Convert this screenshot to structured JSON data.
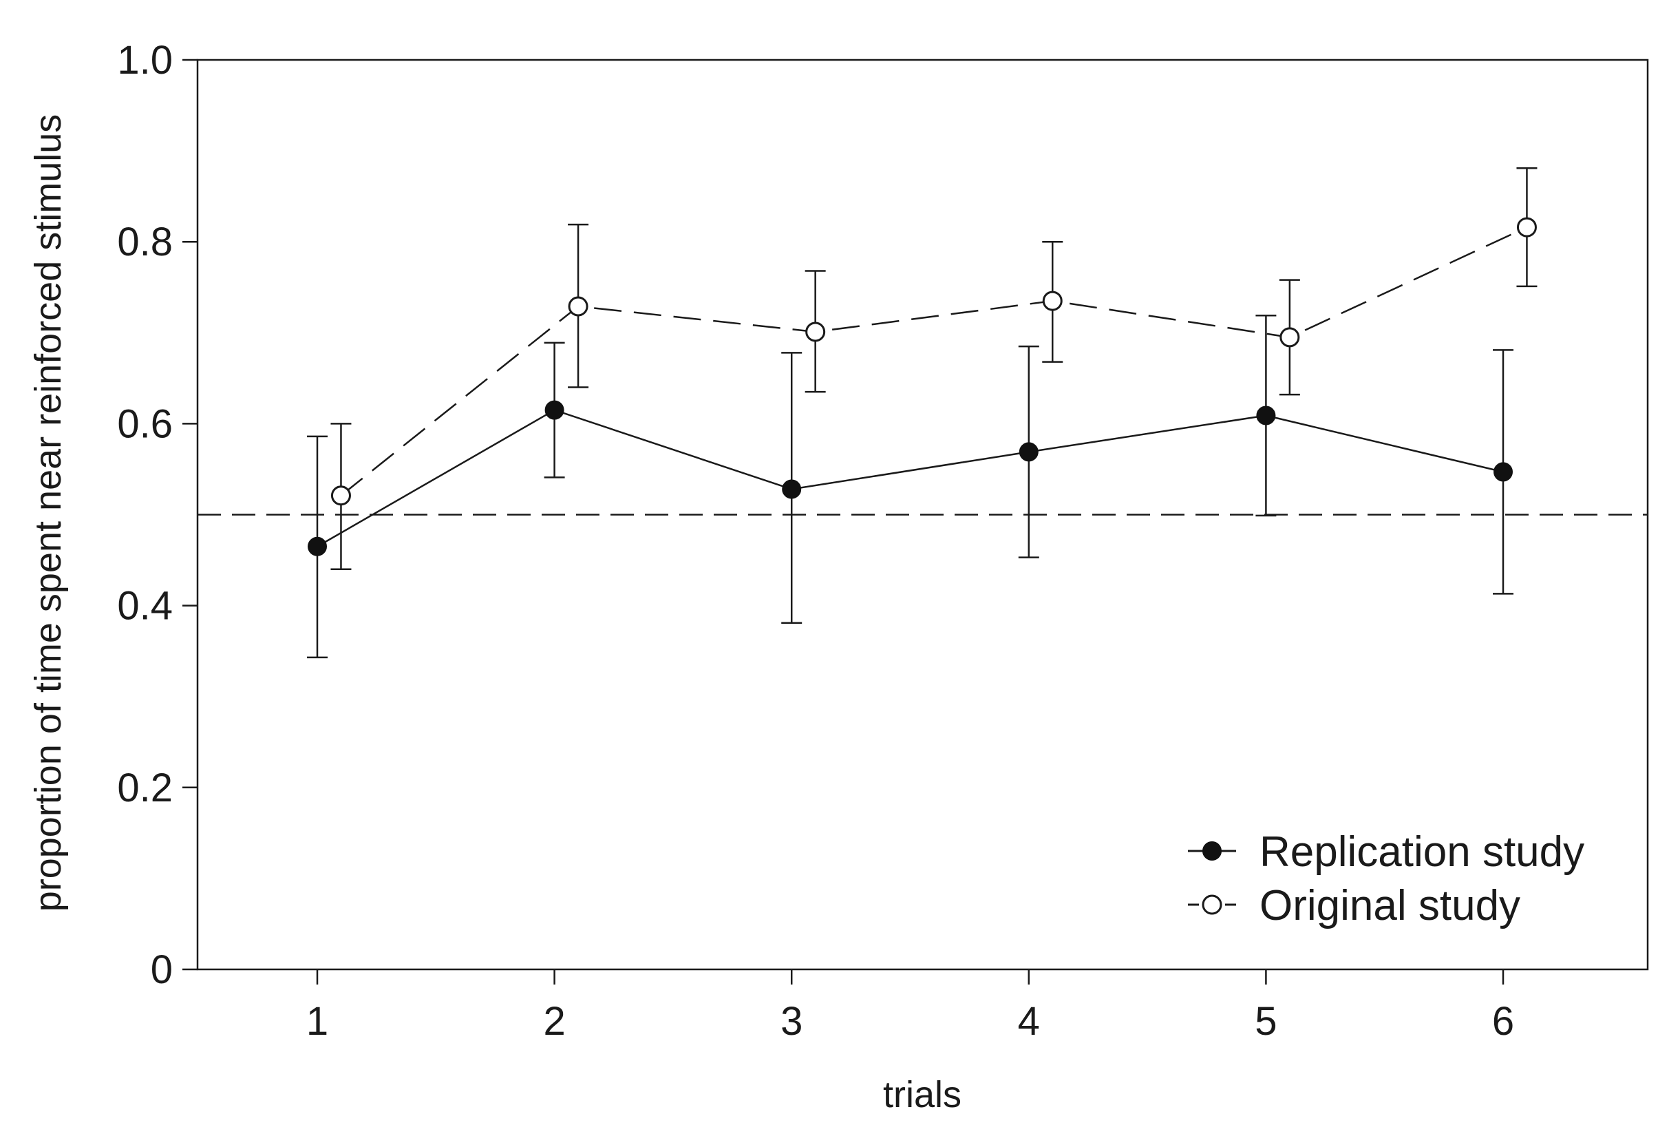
{
  "chart_data": {
    "type": "line",
    "title": "",
    "xlabel": "trials",
    "ylabel": "proportion of time spent near reinforced stimulus",
    "xlim": [
      0.5,
      6.6
    ],
    "ylim": [
      0,
      1.0
    ],
    "x_ticks": [
      1,
      2,
      3,
      4,
      5,
      6
    ],
    "x_tick_labels": [
      "1",
      "2",
      "3",
      "4",
      "5",
      "6"
    ],
    "y_ticks": [
      0,
      0.2,
      0.4,
      0.6,
      0.8,
      1.0
    ],
    "y_tick_labels": [
      "0",
      "0.2",
      "0.4",
      "0.6",
      "0.8",
      "1.0"
    ],
    "grid": false,
    "reference_line": {
      "y": 0.5,
      "style": "dashed"
    },
    "legend_position": "bottom-right",
    "series": [
      {
        "name": "Replication study",
        "marker": "filled-circle",
        "line_style": "solid",
        "x": [
          1,
          2,
          3,
          4,
          5,
          6
        ],
        "values": [
          0.465,
          0.615,
          0.528,
          0.569,
          0.609,
          0.547
        ],
        "err_low": [
          0.343,
          0.541,
          0.381,
          0.453,
          0.499,
          0.413
        ],
        "err_high": [
          0.586,
          0.689,
          0.678,
          0.685,
          0.719,
          0.681
        ]
      },
      {
        "name": "Original study",
        "marker": "open-circle",
        "line_style": "dashed",
        "x": [
          1.1,
          2.1,
          3.1,
          4.1,
          5.1,
          6.1
        ],
        "values": [
          0.521,
          0.729,
          0.701,
          0.735,
          0.695,
          0.816
        ],
        "err_low": [
          0.44,
          0.64,
          0.635,
          0.668,
          0.632,
          0.751
        ],
        "err_high": [
          0.6,
          0.819,
          0.768,
          0.8,
          0.758,
          0.881
        ]
      }
    ]
  },
  "colors": {
    "ink": "#1a1a1a",
    "filled_marker": "#111111",
    "open_marker_fill": "#ffffff",
    "background": "#ffffff"
  }
}
